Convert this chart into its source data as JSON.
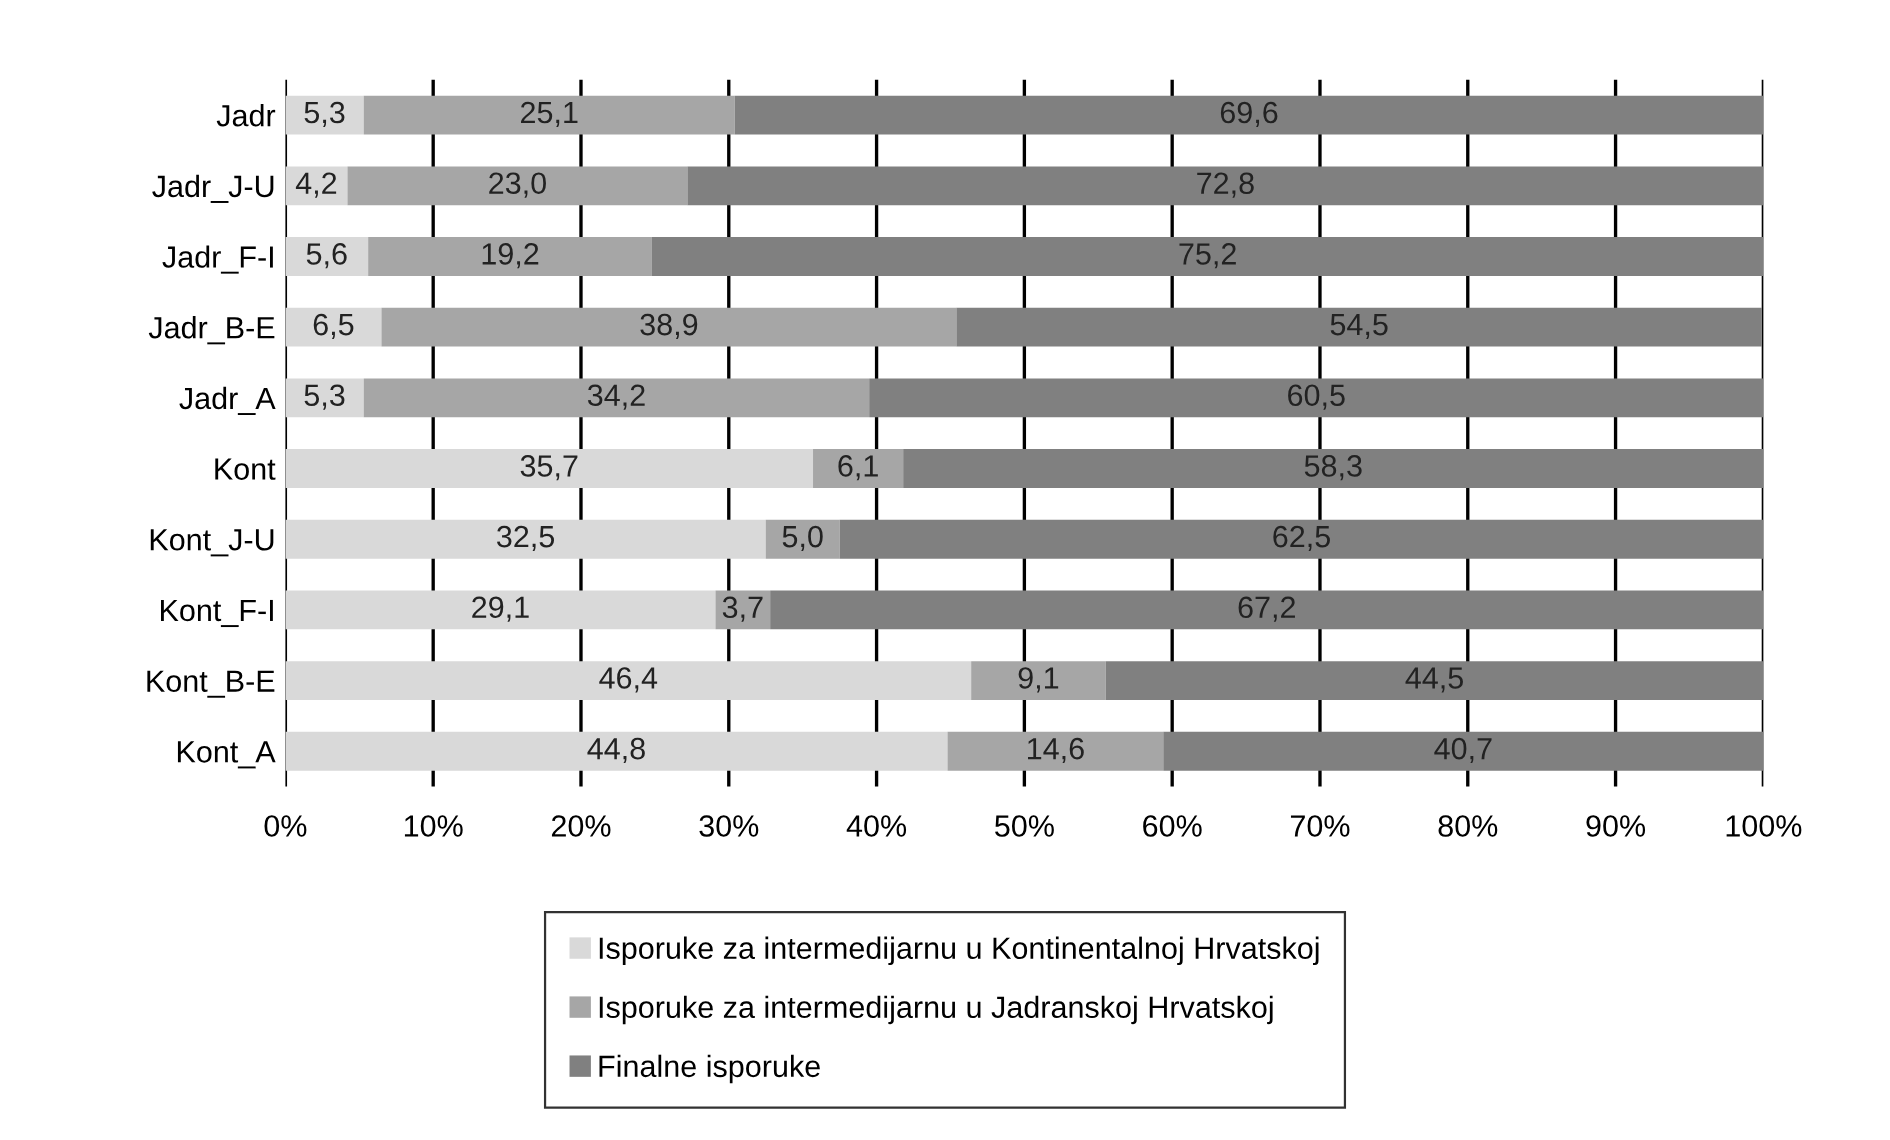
{
  "chart_data": {
    "type": "bar",
    "orientation": "horizontal",
    "stacked": true,
    "categories": [
      "Jadr",
      "Jadr_J-U",
      "Jadr_F-I",
      "Jadr_B-E",
      "Jadr_A",
      "Kont",
      "Kont_J-U",
      "Kont_F-I",
      "Kont_B-E",
      "Kont_A"
    ],
    "series": [
      {
        "name": "Isporuke za intermedijarnu u Kontinentalnoj Hrvatskoj",
        "color": "#d9d9d9",
        "values": [
          5.3,
          4.2,
          5.6,
          6.5,
          5.3,
          35.7,
          32.5,
          29.1,
          46.4,
          44.8
        ],
        "value_labels": [
          "5,3",
          "4,2",
          "5,6",
          "6,5",
          "5,3",
          "35,7",
          "32,5",
          "29,1",
          "46,4",
          "44,8"
        ]
      },
      {
        "name": "Isporuke za intermedijarnu u Jadranskoj Hrvatskoj",
        "color": "#a6a6a6",
        "values": [
          25.1,
          23.0,
          19.2,
          38.9,
          34.2,
          6.1,
          5.0,
          3.7,
          9.1,
          14.6
        ],
        "value_labels": [
          "25,1",
          "23,0",
          "19,2",
          "38,9",
          "34,2",
          "6,1",
          "5,0",
          "3,7",
          "9,1",
          "14,6"
        ]
      },
      {
        "name": "Finalne isporuke",
        "color": "#808080",
        "values": [
          69.6,
          72.8,
          75.2,
          54.5,
          60.5,
          58.3,
          62.5,
          67.2,
          44.5,
          40.7
        ],
        "value_labels": [
          "69,6",
          "72,8",
          "75,2",
          "54,5",
          "60,5",
          "58,3",
          "62,5",
          "67,2",
          "44,5",
          "40,7"
        ]
      }
    ],
    "xlim": [
      0,
      100
    ],
    "xticks": [
      {
        "value": 0,
        "label": "0%"
      },
      {
        "value": 10,
        "label": "10%"
      },
      {
        "value": 20,
        "label": "20%"
      },
      {
        "value": 30,
        "label": "30%"
      },
      {
        "value": 40,
        "label": "40%"
      },
      {
        "value": 50,
        "label": "50%"
      },
      {
        "value": 60,
        "label": "60%"
      },
      {
        "value": 70,
        "label": "70%"
      },
      {
        "value": 80,
        "label": "80%"
      },
      {
        "value": 90,
        "label": "90%"
      },
      {
        "value": 100,
        "label": "100%"
      }
    ],
    "grid": "x",
    "legend": "bottom"
  }
}
